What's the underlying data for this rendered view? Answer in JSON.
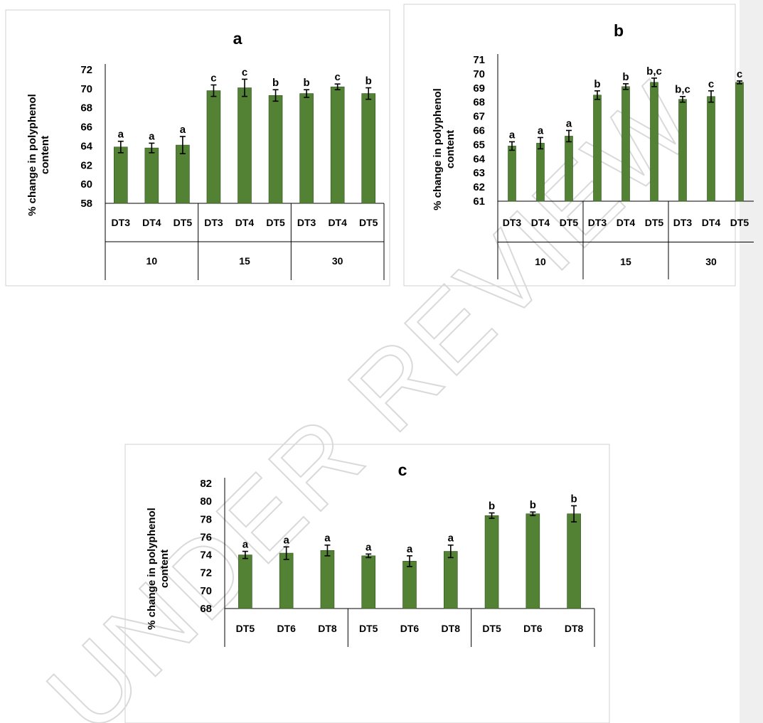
{
  "colors": {
    "bar": "#548235",
    "bar_edge": "#2f4f1f",
    "frame": "#d0d0d0",
    "watermark": "#d9d9d9"
  },
  "chart_data": [
    {
      "type": "bar",
      "title": "a",
      "xlabel": "",
      "ylabel": "% change in polyphenol content",
      "ylim": [
        58,
        72
      ],
      "yticks": [
        58,
        60,
        62,
        64,
        66,
        68,
        70,
        72
      ],
      "categories": [
        "DT3",
        "DT4",
        "DT5",
        "DT3",
        "DT4",
        "DT5",
        "DT3",
        "DT4",
        "DT5"
      ],
      "groups": [
        "10",
        "15",
        "30"
      ],
      "values": [
        63.9,
        63.8,
        64.1,
        69.8,
        70.1,
        69.3,
        69.5,
        70.2,
        69.5
      ],
      "errors": [
        0.6,
        0.5,
        0.9,
        0.6,
        0.9,
        0.6,
        0.4,
        0.3,
        0.6
      ],
      "data_labels": [
        "a",
        "a",
        "a",
        "c",
        "c",
        "b",
        "b",
        "c",
        "b"
      ],
      "grid": false,
      "legend": "none"
    },
    {
      "type": "bar",
      "title": "b",
      "xlabel": "",
      "ylabel": "% change in polyphenol content",
      "ylim": [
        61,
        71
      ],
      "yticks": [
        61,
        62,
        63,
        64,
        65,
        66,
        67,
        68,
        69,
        70,
        71
      ],
      "categories": [
        "DT3",
        "DT4",
        "DT5",
        "DT3",
        "DT4",
        "DT5",
        "DT3",
        "DT4",
        "DT5"
      ],
      "groups": [
        "10",
        "15",
        "30"
      ],
      "values": [
        64.9,
        65.1,
        65.6,
        68.5,
        69.1,
        69.4,
        68.2,
        68.4,
        69.4
      ],
      "errors": [
        0.3,
        0.4,
        0.4,
        0.3,
        0.2,
        0.3,
        0.2,
        0.4,
        0.1
      ],
      "data_labels": [
        "a",
        "a",
        "a",
        "b",
        "b",
        "b,c",
        "b,c",
        "c",
        "c"
      ],
      "grid": false,
      "legend": "none"
    },
    {
      "type": "bar",
      "title": "c",
      "xlabel": "",
      "ylabel": "% change in polyphenol content",
      "ylim": [
        68,
        82
      ],
      "yticks": [
        68,
        70,
        72,
        74,
        76,
        78,
        80,
        82
      ],
      "categories": [
        "DT5",
        "DT6",
        "DT8",
        "DT5",
        "DT6",
        "DT8",
        "DT5",
        "DT6",
        "DT8"
      ],
      "groups": [],
      "values": [
        74.0,
        74.2,
        74.5,
        73.9,
        73.3,
        74.4,
        78.4,
        78.6,
        78.6
      ],
      "errors": [
        0.4,
        0.7,
        0.6,
        0.2,
        0.6,
        0.7,
        0.3,
        0.2,
        0.9
      ],
      "data_labels": [
        "a",
        "a",
        "a",
        "a",
        "a",
        "a",
        "b",
        "b",
        "b"
      ],
      "grid": false,
      "legend": "none"
    }
  ],
  "watermark": {
    "text": "UNDER REVIEW"
  }
}
